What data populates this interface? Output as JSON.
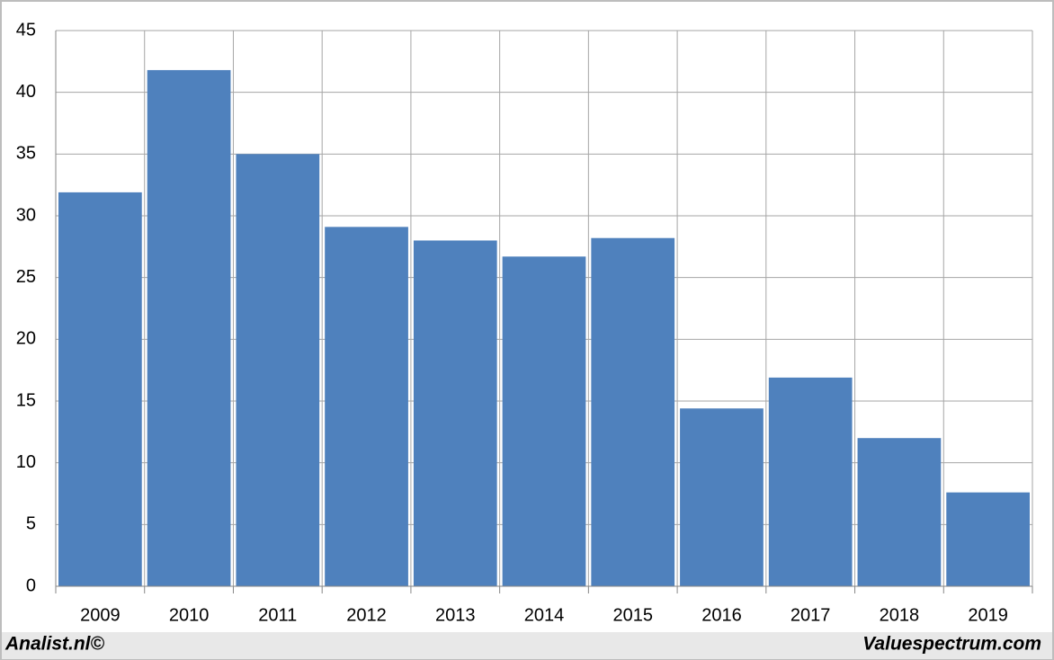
{
  "chart_data": {
    "type": "bar",
    "categories": [
      "2009",
      "2010",
      "2011",
      "2012",
      "2013",
      "2014",
      "2015",
      "2016",
      "2017",
      "2018",
      "2019"
    ],
    "values": [
      31.9,
      41.8,
      35.0,
      29.1,
      28.0,
      26.7,
      28.2,
      14.4,
      16.9,
      12.0,
      7.6
    ],
    "color": "#4f81bd",
    "ylim": [
      0,
      45
    ],
    "yticks": [
      0,
      5,
      10,
      15,
      20,
      25,
      30,
      35,
      40,
      45
    ],
    "grid": true
  },
  "footer": {
    "left": "Analist.nl©",
    "right": "Valuespectrum.com"
  }
}
